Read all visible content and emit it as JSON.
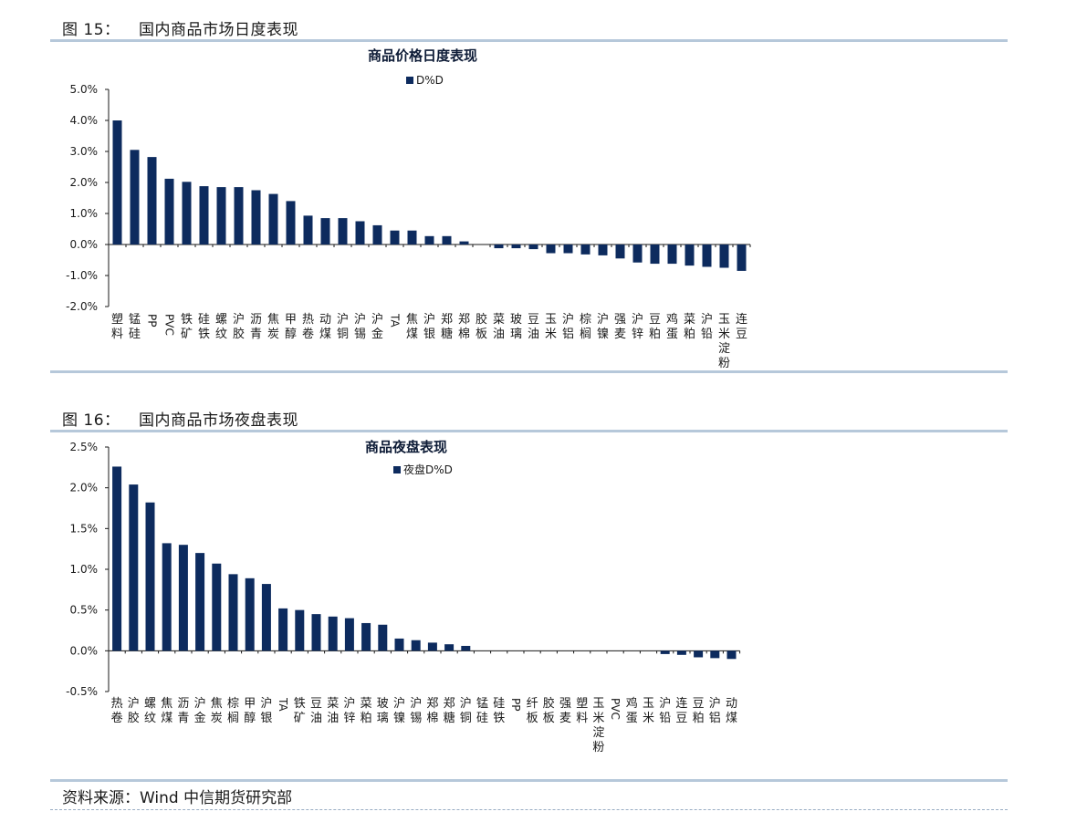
{
  "figures": [
    {
      "label": "图 15：",
      "title": "国内商品市场日度表现"
    },
    {
      "label": "图 16：",
      "title": "国内商品市场夜盘表现"
    }
  ],
  "source": "资料来源：Wind  中信期货研究部",
  "colors": {
    "bar": "#0d2b5e",
    "rule": "#b6c8da",
    "axis": "#1a1a1a"
  },
  "chart_data": [
    {
      "type": "bar",
      "title": "商品价格日度表现",
      "legend": "D%D",
      "legend_position": "top-center",
      "grid": false,
      "ylim": [
        -2.0,
        5.0
      ],
      "yticks": [
        "5.0%",
        "4.0%",
        "3.0%",
        "2.0%",
        "1.0%",
        "0.0%",
        "-1.0%",
        "-2.0%"
      ],
      "categories": [
        "塑料",
        "锰硅",
        "PP",
        "PVC",
        "铁矿",
        "硅铁",
        "螺纹",
        "沪胶",
        "沥青",
        "焦炭",
        "甲醇",
        "热卷",
        "动煤",
        "沪铜",
        "沪锡",
        "沪金",
        "TA",
        "焦煤",
        "沪银",
        "郑糖",
        "郑棉",
        "胶板",
        "菜油",
        "玻璃",
        "豆油",
        "玉米",
        "沪铝",
        "棕榈",
        "沪镍",
        "强麦",
        "沪锌",
        "豆粕",
        "鸡蛋",
        "菜粕",
        "沪铅",
        "玉米淀粉",
        "连豆"
      ],
      "values": [
        4.0,
        3.05,
        2.82,
        2.12,
        2.02,
        1.88,
        1.85,
        1.85,
        1.75,
        1.63,
        1.4,
        0.93,
        0.85,
        0.85,
        0.75,
        0.62,
        0.45,
        0.45,
        0.27,
        0.27,
        0.1,
        0.0,
        -0.12,
        -0.12,
        -0.15,
        -0.28,
        -0.28,
        -0.32,
        -0.35,
        -0.45,
        -0.58,
        -0.62,
        -0.62,
        -0.68,
        -0.72,
        -0.75,
        -0.85
      ]
    },
    {
      "type": "bar",
      "title": "商品夜盘表现",
      "legend": "夜盘D%D",
      "legend_position": "top-center",
      "grid": false,
      "ylim": [
        -0.5,
        2.5
      ],
      "yticks": [
        "2.5%",
        "2.0%",
        "1.5%",
        "1.0%",
        "0.5%",
        "0.0%",
        "-0.5%"
      ],
      "categories": [
        "热卷",
        "沪胶",
        "螺纹",
        "焦煤",
        "沥青",
        "沪金",
        "焦炭",
        "棕榈",
        "甲醇",
        "沪银",
        "TA",
        "铁矿",
        "豆油",
        "菜油",
        "沪锌",
        "菜粕",
        "玻璃",
        "沪镍",
        "沪锡",
        "郑棉",
        "郑糖",
        "沪铜",
        "锰硅",
        "硅铁",
        "PP",
        "纤板",
        "胶板",
        "强麦",
        "塑料",
        "玉米淀粉",
        "PVC",
        "鸡蛋",
        "玉米",
        "沪铅",
        "连豆",
        "豆粕",
        "沪铝",
        "动煤"
      ],
      "values": [
        2.26,
        2.04,
        1.82,
        1.32,
        1.3,
        1.2,
        1.07,
        0.94,
        0.89,
        0.82,
        0.52,
        0.5,
        0.45,
        0.42,
        0.4,
        0.34,
        0.32,
        0.15,
        0.13,
        0.1,
        0.08,
        0.06,
        0,
        0,
        0,
        0,
        0,
        0,
        0,
        0,
        0,
        0,
        0,
        -0.04,
        -0.05,
        -0.08,
        -0.09,
        -0.1
      ]
    }
  ]
}
